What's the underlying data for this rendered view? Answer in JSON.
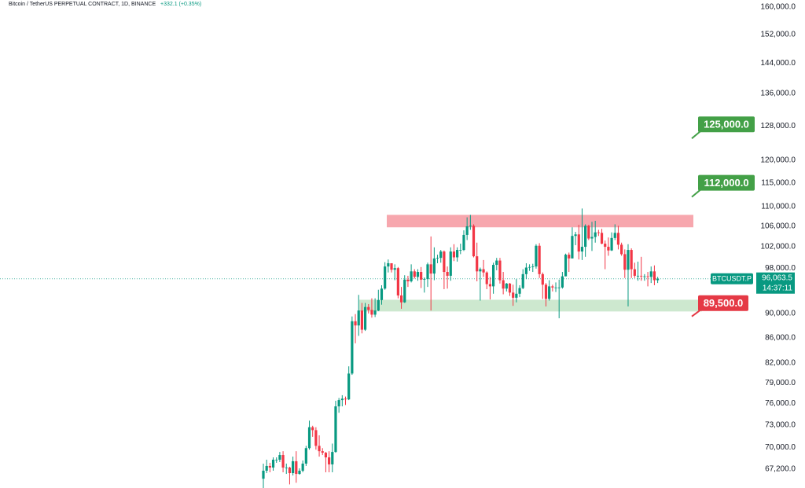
{
  "chart_data": {
    "type": "candlestick",
    "title": "Bitcoin / TetherUS PERPETUAL CONTRACT, 1D, BINANCE",
    "change": "+332.1 (+0.35%)",
    "up_color": "#089981",
    "down_color": "#f23645",
    "log_scale": true,
    "grid": false,
    "ylim": [
      64860,
      162100
    ],
    "yticks": [
      {
        "value": 160000,
        "label": "160,000.0"
      },
      {
        "value": 152000,
        "label": "152,000.0"
      },
      {
        "value": 144000,
        "label": "144,000.0"
      },
      {
        "value": 136000,
        "label": "136,000.0"
      },
      {
        "value": 128000,
        "label": "128,000.0"
      },
      {
        "value": 120000,
        "label": "120,000.0"
      },
      {
        "value": 115000,
        "label": "115,000.0"
      },
      {
        "value": 110000,
        "label": "110,000.0"
      },
      {
        "value": 106000,
        "label": "106,000.0"
      },
      {
        "value": 102000,
        "label": "102,000.0"
      },
      {
        "value": 98000,
        "label": "98,000.0"
      },
      {
        "value": 90000,
        "label": "90,000.0"
      },
      {
        "value": 86000,
        "label": "86,000.0"
      },
      {
        "value": 82000,
        "label": "82,000.0"
      },
      {
        "value": 79000,
        "label": "79,000.0"
      },
      {
        "value": 76000,
        "label": "76,000.0"
      },
      {
        "value": 73000,
        "label": "73,000.0"
      },
      {
        "value": 70000,
        "label": "70,000.0"
      },
      {
        "value": 67200,
        "label": "67,200.0"
      }
    ],
    "candles": [
      [
        66000,
        67900,
        64800,
        67000
      ],
      [
        67000,
        68400,
        66700,
        67600
      ],
      [
        67600,
        68000,
        66800,
        67400
      ],
      [
        67400,
        68700,
        67000,
        68400
      ],
      [
        68400,
        68700,
        68000,
        68400
      ],
      [
        68400,
        69400,
        68100,
        69000
      ],
      [
        69000,
        69500,
        66800,
        67400
      ],
      [
        67400,
        67900,
        66600,
        67400
      ],
      [
        67400,
        67500,
        65300,
        66700
      ],
      [
        66700,
        68800,
        66400,
        68200
      ],
      [
        68200,
        69500,
        65500,
        66600
      ],
      [
        66600,
        67300,
        66500,
        67000
      ],
      [
        67000,
        68300,
        66800,
        67900
      ],
      [
        67900,
        70200,
        67600,
        69900
      ],
      [
        69900,
        73600,
        69700,
        72700
      ],
      [
        72700,
        72900,
        71400,
        72300
      ],
      [
        72300,
        72700,
        69700,
        70200
      ],
      [
        70200,
        71600,
        68800,
        69500
      ],
      [
        69500,
        69900,
        69000,
        69300
      ],
      [
        69300,
        69400,
        66800,
        68700
      ],
      [
        68700,
        69500,
        66800,
        67800
      ],
      [
        67800,
        70500,
        66800,
        69400
      ],
      [
        69400,
        76400,
        69300,
        75600
      ],
      [
        75600,
        76800,
        74700,
        76500
      ],
      [
        76500,
        77200,
        75600,
        76700
      ],
      [
        76700,
        77000,
        75800,
        76600
      ],
      [
        76600,
        81500,
        76500,
        80400
      ],
      [
        80400,
        89500,
        80200,
        88700
      ],
      [
        88700,
        89900,
        85100,
        88000
      ],
      [
        88000,
        93200,
        86300,
        90500
      ],
      [
        90500,
        91800,
        86700,
        87300
      ],
      [
        87300,
        91800,
        87100,
        91100
      ],
      [
        91100,
        91600,
        90000,
        90600
      ],
      [
        90600,
        92600,
        89300,
        89800
      ],
      [
        89800,
        92600,
        89400,
        90500
      ],
      [
        90500,
        94100,
        90400,
        92300
      ],
      [
        92300,
        94900,
        91500,
        94300
      ],
      [
        94300,
        99100,
        94100,
        98300
      ],
      [
        98300,
        99600,
        97200,
        98900
      ],
      [
        98900,
        98900,
        97200,
        97700
      ],
      [
        97700,
        98700,
        95800,
        98000
      ],
      [
        98000,
        98200,
        92600,
        93100
      ],
      [
        93100,
        94600,
        90800,
        91900
      ],
      [
        91900,
        96700,
        91800,
        95900
      ],
      [
        95900,
        96600,
        94600,
        95600
      ],
      [
        95600,
        98700,
        95400,
        97400
      ],
      [
        97400,
        97800,
        96100,
        96400
      ],
      [
        96400,
        97800,
        95700,
        97300
      ],
      [
        97300,
        98200,
        94400,
        95900
      ],
      [
        95900,
        96300,
        93600,
        96000
      ],
      [
        96000,
        99000,
        94600,
        98700
      ],
      [
        98700,
        104000,
        90500,
        97000
      ],
      [
        97000,
        101900,
        95800,
        99800
      ],
      [
        99800,
        100500,
        98900,
        99900
      ],
      [
        99900,
        101400,
        99000,
        101100
      ],
      [
        101100,
        101300,
        94200,
        97300
      ],
      [
        97300,
        98300,
        94300,
        96600
      ],
      [
        96600,
        101900,
        95700,
        101100
      ],
      [
        101100,
        102500,
        99300,
        100000
      ],
      [
        100000,
        101900,
        99200,
        101400
      ],
      [
        101400,
        102600,
        100600,
        101400
      ],
      [
        101400,
        105200,
        101200,
        104300
      ],
      [
        104300,
        107800,
        103300,
        106000
      ],
      [
        106000,
        108300,
        105300,
        106100
      ],
      [
        106100,
        106400,
        100000,
        100200
      ],
      [
        100200,
        102800,
        95600,
        97400
      ],
      [
        97400,
        98100,
        92200,
        97800
      ],
      [
        97800,
        99500,
        96400,
        97200
      ],
      [
        97200,
        97400,
        94200,
        95100
      ],
      [
        95100,
        96400,
        92400,
        94700
      ],
      [
        94700,
        99000,
        93400,
        98600
      ],
      [
        98600,
        99900,
        97600,
        99400
      ],
      [
        99400,
        99900,
        95200,
        95800
      ],
      [
        95800,
        97300,
        93300,
        94300
      ],
      [
        94300,
        95300,
        93800,
        95200
      ],
      [
        95200,
        95300,
        93000,
        93600
      ],
      [
        93600,
        95000,
        91300,
        92700
      ],
      [
        92700,
        96000,
        91900,
        93400
      ],
      [
        93400,
        94900,
        92800,
        94400
      ],
      [
        94400,
        97800,
        94200,
        96900
      ],
      [
        96900,
        98900,
        96000,
        98100
      ],
      [
        98100,
        98700,
        97500,
        98200
      ],
      [
        98200,
        98800,
        97300,
        98300
      ],
      [
        98300,
        102500,
        97900,
        102200
      ],
      [
        102200,
        102700,
        96200,
        96900
      ],
      [
        96900,
        97200,
        92500,
        95000
      ],
      [
        95000,
        95300,
        91200,
        92500
      ],
      [
        92500,
        95800,
        92200,
        94700
      ],
      [
        94700,
        95000,
        93800,
        94500
      ],
      [
        94500,
        95400,
        93700,
        94500
      ],
      [
        94500,
        95900,
        89200,
        94500
      ],
      [
        94500,
        97300,
        94300,
        96500
      ],
      [
        96500,
        100700,
        96500,
        100500
      ],
      [
        100500,
        100900,
        97300,
        99800
      ],
      [
        99800,
        105800,
        99800,
        104100
      ],
      [
        104100,
        104900,
        102300,
        104400
      ],
      [
        104400,
        106300,
        99600,
        101100
      ],
      [
        101100,
        109600,
        99500,
        102000
      ],
      [
        102000,
        106400,
        100100,
        106100
      ],
      [
        106100,
        106300,
        103300,
        103600
      ],
      [
        103600,
        106900,
        101200,
        103900
      ],
      [
        103900,
        107100,
        102800,
        104800
      ],
      [
        104800,
        105300,
        104100,
        104700
      ],
      [
        104700,
        105500,
        102500,
        102600
      ],
      [
        102600,
        103200,
        97800,
        102000
      ],
      [
        102000,
        103800,
        100300,
        101300
      ],
      [
        101300,
        104800,
        101200,
        103700
      ],
      [
        103700,
        106400,
        103300,
        104700
      ],
      [
        104700,
        106100,
        101500,
        102400
      ],
      [
        102400,
        102800,
        100300,
        100600
      ],
      [
        100600,
        101500,
        96200,
        97700
      ],
      [
        97700,
        102500,
        91200,
        101400
      ],
      [
        101400,
        101700,
        96200,
        97800
      ],
      [
        97800,
        99000,
        96200,
        96600
      ],
      [
        96600,
        99200,
        95700,
        96600
      ],
      [
        96600,
        100100,
        95700,
        96500
      ],
      [
        96500,
        96900,
        95700,
        96500
      ],
      [
        96500,
        97300,
        94700,
        96400
      ],
      [
        96400,
        98300,
        95300,
        97400
      ],
      [
        97400,
        98500,
        94900,
        95800
      ],
      [
        95800,
        96400,
        95300,
        96063.5
      ]
    ],
    "last_price": {
      "value": 96063.5,
      "label": "96,063.5",
      "symbol": "BTCUSDT.P",
      "countdown": "14:37:11",
      "color": "#089981"
    },
    "zones": [
      {
        "low": 105800,
        "high": 108300,
        "color": "#f7a7ae"
      },
      {
        "low": 90340,
        "high": 92350,
        "color": "#cde8cf"
      }
    ],
    "annotations": [
      {
        "value": 125000,
        "label": "125,000.0",
        "color": "#43a047"
      },
      {
        "value": 112000,
        "label": "112,000.0",
        "color": "#43a047"
      },
      {
        "value": 89500,
        "label": "89,500.0",
        "color": "#e53945"
      }
    ]
  }
}
